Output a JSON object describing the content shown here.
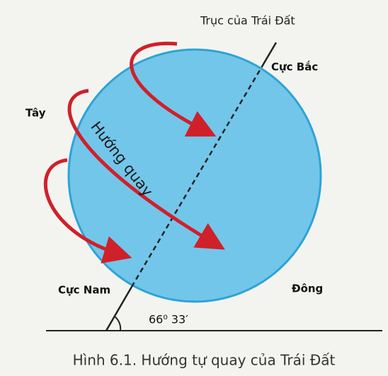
{
  "axis_label": "Trục của Trái Đất",
  "north_pole": "Cực Bắc",
  "west": "Tây",
  "rotation_direction": "Hướng quay",
  "south_pole": "Cực Nam",
  "east": "Đông",
  "angle": "66⁰ 33′",
  "caption": "Hình 6.1. Hướng tự quay của Trái Đất"
}
